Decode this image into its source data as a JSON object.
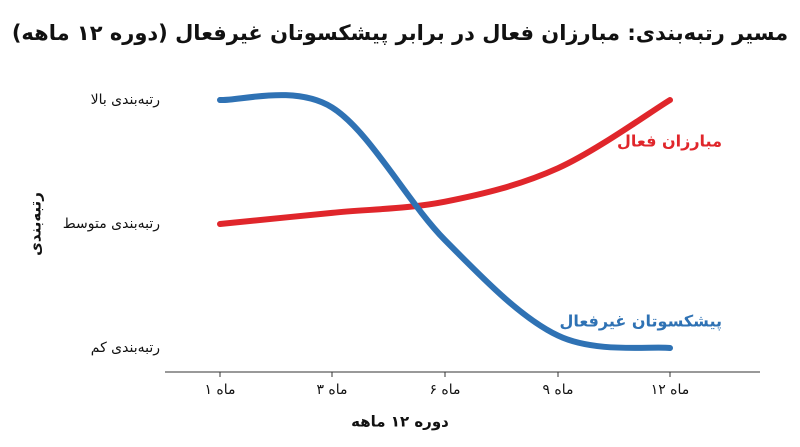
{
  "chart_data": {
    "type": "line",
    "title": "مسیر رتبه‌بندی: مبارزان فعال در برابر پیشکسوتان غیرفعال (دوره ۱۲ ماهه)",
    "x_label": "دوره ۱۲ ماهه",
    "y_label": "رتبه‌بندی",
    "categories": [
      "ماه ۱",
      "ماه ۳",
      "ماه ۶",
      "ماه ۹",
      "ماه ۱۲"
    ],
    "ylim": [
      0,
      2
    ],
    "yticks": [
      {
        "value": 0,
        "label": "رتبه‌بندی کم"
      },
      {
        "value": 1,
        "label": "رتبه‌بندی متوسط"
      },
      {
        "value": 2,
        "label": "رتبه‌بندی بالا"
      }
    ],
    "series": [
      {
        "name": "مبارزان فعال",
        "color": "#e0262b",
        "values": [
          1.0,
          1.09,
          1.18,
          1.45,
          2.0
        ]
      },
      {
        "name": "پیشکسوتان غیرفعال",
        "color": "#2f72b4",
        "values": [
          2.0,
          1.94,
          0.87,
          0.1,
          0.0
        ]
      }
    ]
  }
}
